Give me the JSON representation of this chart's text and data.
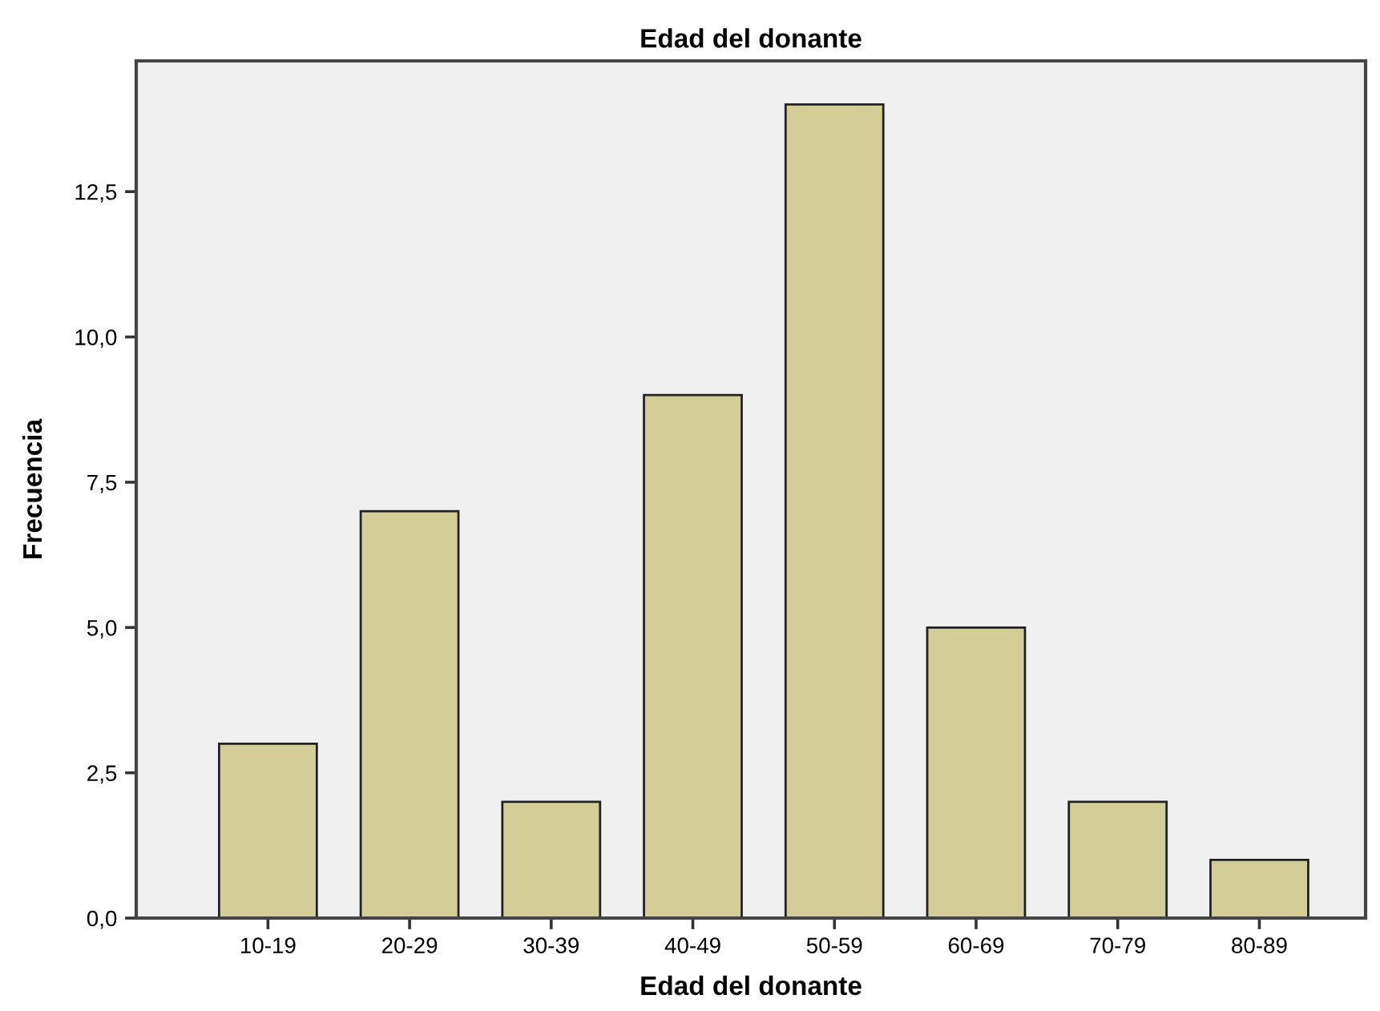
{
  "chart_data": {
    "type": "bar",
    "title": "Edad del donante",
    "xlabel": "Edad del donante",
    "ylabel": "Frecuencia",
    "categories": [
      "10-19",
      "20-29",
      "30-39",
      "40-49",
      "50-59",
      "60-69",
      "70-79",
      "80-89"
    ],
    "values": [
      3,
      7,
      2,
      9,
      14,
      5,
      2,
      1
    ],
    "color": "#d3ce98",
    "ylim": [
      0,
      14.75
    ],
    "yticks": [
      {
        "value": 0,
        "label": "0,0"
      },
      {
        "value": 2.5,
        "label": "2,5"
      },
      {
        "value": 5,
        "label": "5,0"
      },
      {
        "value": 7.5,
        "label": "7,5"
      },
      {
        "value": 10,
        "label": "10,0"
      },
      {
        "value": 12.5,
        "label": "12,5"
      }
    ],
    "grid": false
  }
}
